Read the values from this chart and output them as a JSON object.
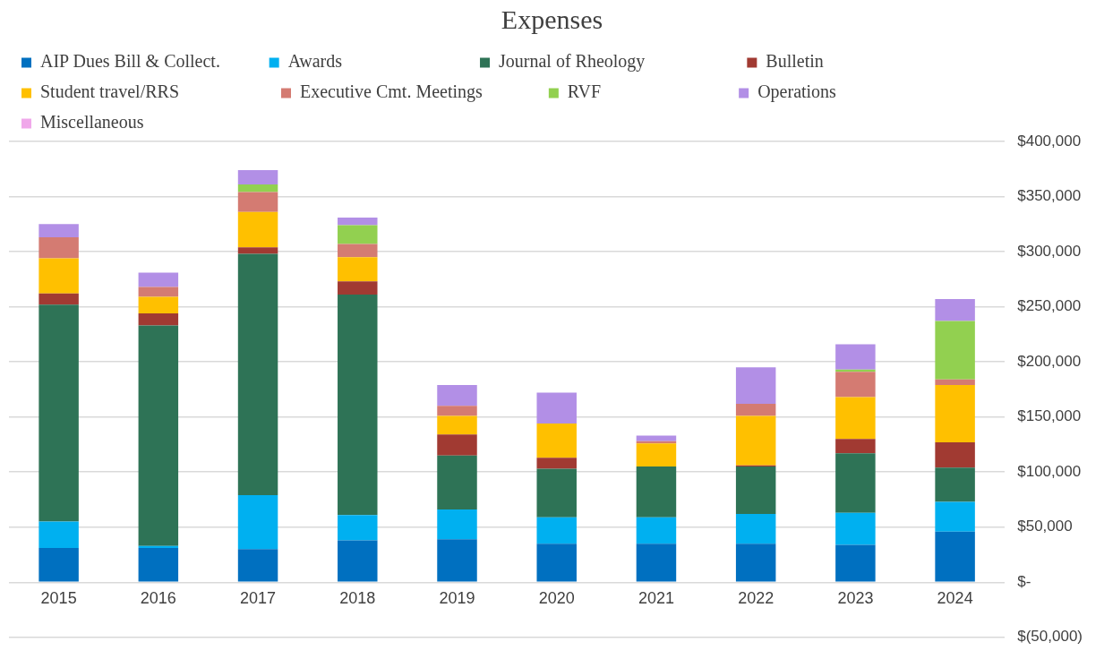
{
  "chart_data": {
    "type": "bar",
    "title": "Expenses",
    "stacked": true,
    "legend": "top",
    "grid": "y",
    "categories": [
      "2015",
      "2016",
      "2017",
      "2018",
      "2019",
      "2020",
      "2021",
      "2022",
      "2023",
      "2024"
    ],
    "ylim": [
      -50000,
      400000
    ],
    "yticks": [
      {
        "value": -50000,
        "label": "$(50,000)"
      },
      {
        "value": 0,
        "label": "$-"
      },
      {
        "value": 50000,
        "label": "$50,000"
      },
      {
        "value": 100000,
        "label": "$100,000"
      },
      {
        "value": 150000,
        "label": "$150,000"
      },
      {
        "value": 200000,
        "label": "$200,000"
      },
      {
        "value": 250000,
        "label": "$250,000"
      },
      {
        "value": 300000,
        "label": "$300,000"
      },
      {
        "value": 350000,
        "label": "$350,000"
      },
      {
        "value": 400000,
        "label": "$400,000"
      }
    ],
    "series": [
      {
        "name": "AIP Dues Bill & Collect.",
        "color": "#0070c0",
        "values": [
          31000,
          31000,
          30000,
          38000,
          39000,
          35000,
          35000,
          35000,
          34000,
          46000
        ]
      },
      {
        "name": "Awards",
        "color": "#00b0f0",
        "values": [
          24000,
          2000,
          49000,
          23000,
          27000,
          24000,
          24000,
          27000,
          29000,
          27000
        ]
      },
      {
        "name": "Journal of Rheology",
        "color": "#2e7356",
        "values": [
          197000,
          200000,
          219000,
          200000,
          49000,
          44000,
          46000,
          43000,
          54000,
          31000
        ]
      },
      {
        "name": "Bulletin",
        "color": "#a13a32",
        "values": [
          10000,
          11000,
          6000,
          12000,
          19000,
          10000,
          0,
          1000,
          13000,
          23000
        ]
      },
      {
        "name": "Student travel/RRS",
        "color": "#ffc000",
        "values": [
          32000,
          15000,
          32000,
          22000,
          17000,
          31000,
          21000,
          45000,
          38000,
          52000
        ]
      },
      {
        "name": "Executive Cmt. Meetings",
        "color": "#d47b72",
        "values": [
          19000,
          9000,
          18000,
          12000,
          9000,
          0,
          2000,
          11000,
          23000,
          5000
        ]
      },
      {
        "name": "RVF",
        "color": "#92d050",
        "values": [
          0,
          0,
          7000,
          17000,
          0,
          0,
          0,
          0,
          2000,
          53000
        ]
      },
      {
        "name": "Operations",
        "color": "#b28fe6",
        "values": [
          12000,
          13000,
          13000,
          7000,
          19000,
          28000,
          5000,
          33000,
          23000,
          20000
        ]
      },
      {
        "name": "Miscellaneous",
        "color": "#f0a8ea",
        "values": [
          0,
          0,
          0,
          0,
          0,
          0,
          0,
          0,
          0,
          0
        ]
      }
    ]
  }
}
